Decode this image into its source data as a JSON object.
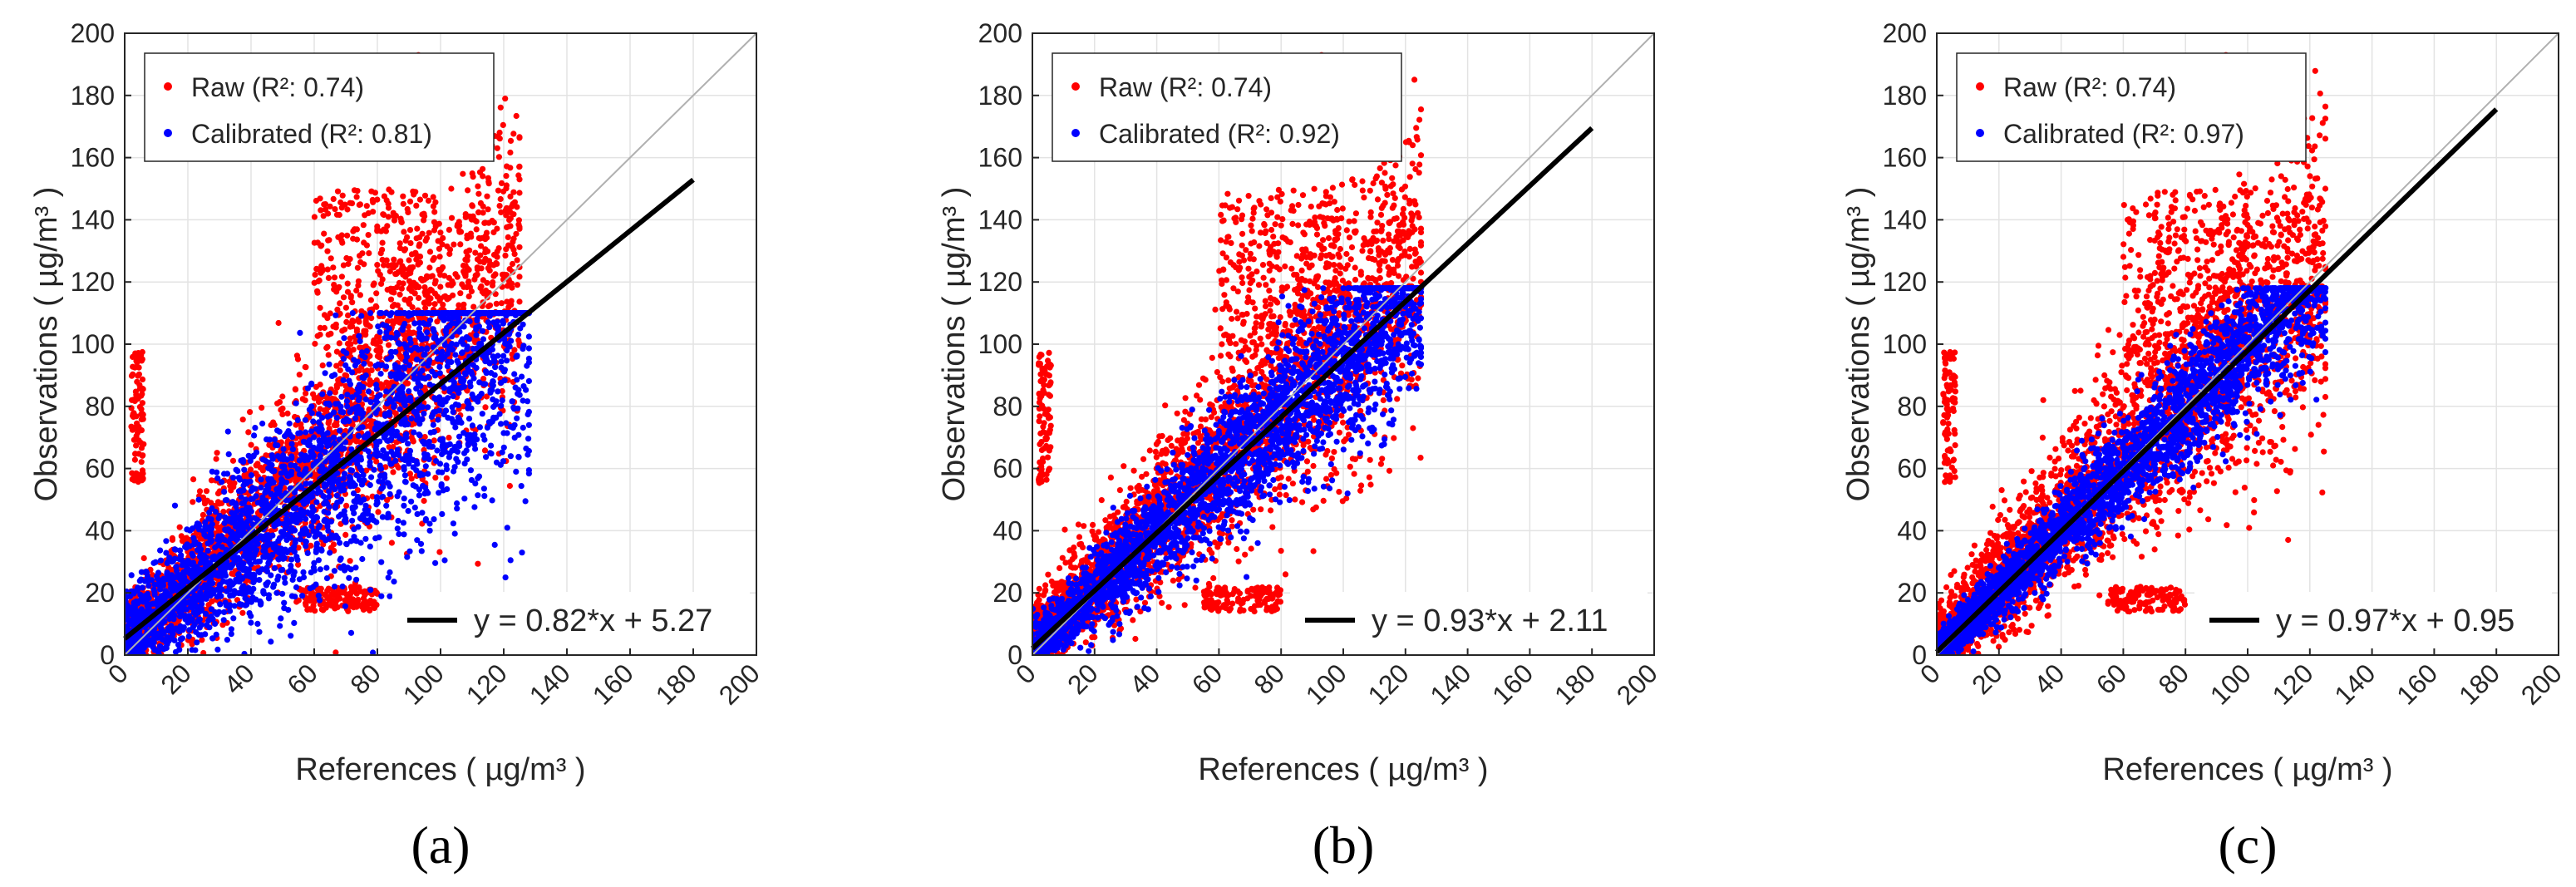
{
  "chart_data": [
    {
      "type": "scatter",
      "panel_label": "(a)",
      "xlabel": "References ( µg/m³ )",
      "ylabel": "Observations ( µg/m³ )",
      "xlim": [
        0,
        200
      ],
      "ylim": [
        0,
        200
      ],
      "xticks": [
        0,
        20,
        40,
        60,
        80,
        100,
        120,
        140,
        160,
        180,
        200
      ],
      "yticks": [
        0,
        20,
        40,
        60,
        80,
        100,
        120,
        140,
        160,
        180,
        200
      ],
      "grid": true,
      "legend_position": "top-left",
      "series": [
        {
          "name": "Raw",
          "r2_label": "Raw (R²: 0.74)",
          "color": "#ff0000",
          "slope": 1.0,
          "intercept": 0,
          "x_max": 125
        },
        {
          "name": "Calibrated",
          "r2_label": "Calibrated (R²: 0.81)",
          "color": "#0000ff",
          "slope": 0.82,
          "intercept": 5.27,
          "x_max": 128
        }
      ],
      "fit_line": {
        "label": "y = 0.82*x + 5.27",
        "slope": 0.82,
        "intercept": 5.27,
        "x_range": [
          0,
          180
        ],
        "color": "#000000"
      },
      "identity_line": {
        "x_range": [
          0,
          200
        ],
        "color": "#b0b0b0"
      }
    },
    {
      "type": "scatter",
      "panel_label": "(b)",
      "xlabel": "References ( µg/m³ )",
      "ylabel": "Observations ( µg/m³ )",
      "xlim": [
        0,
        200
      ],
      "ylim": [
        0,
        200
      ],
      "xticks": [
        0,
        20,
        40,
        60,
        80,
        100,
        120,
        140,
        160,
        180,
        200
      ],
      "yticks": [
        0,
        20,
        40,
        60,
        80,
        100,
        120,
        140,
        160,
        180,
        200
      ],
      "grid": true,
      "legend_position": "top-left",
      "series": [
        {
          "name": "Raw",
          "r2_label": "Raw (R²: 0.74)",
          "color": "#ff0000",
          "slope": 1.0,
          "intercept": 0,
          "x_max": 125
        },
        {
          "name": "Calibrated",
          "r2_label": "Calibrated (R²: 0.92)",
          "color": "#0000ff",
          "slope": 0.93,
          "intercept": 2.11,
          "x_max": 125
        }
      ],
      "fit_line": {
        "label": "y = 0.93*x + 2.11",
        "slope": 0.93,
        "intercept": 2.11,
        "x_range": [
          0,
          180
        ],
        "color": "#000000"
      },
      "identity_line": {
        "x_range": [
          0,
          200
        ],
        "color": "#b0b0b0"
      }
    },
    {
      "type": "scatter",
      "panel_label": "(c)",
      "xlabel": "References ( µg/m³ )",
      "ylabel": "Observations ( µg/m³ )",
      "xlim": [
        0,
        200
      ],
      "ylim": [
        0,
        200
      ],
      "xticks": [
        0,
        20,
        40,
        60,
        80,
        100,
        120,
        140,
        160,
        180,
        200
      ],
      "yticks": [
        0,
        20,
        40,
        60,
        80,
        100,
        120,
        140,
        160,
        180,
        200
      ],
      "grid": true,
      "legend_position": "top-left",
      "series": [
        {
          "name": "Raw",
          "r2_label": "Raw (R²: 0.74)",
          "color": "#ff0000",
          "slope": 1.0,
          "intercept": 0,
          "x_max": 125
        },
        {
          "name": "Calibrated",
          "r2_label": "Calibrated (R²: 0.97)",
          "color": "#0000ff",
          "slope": 0.97,
          "intercept": 0.95,
          "x_max": 125
        }
      ],
      "fit_line": {
        "label": "y = 0.97*x + 0.95",
        "slope": 0.97,
        "intercept": 0.95,
        "x_range": [
          0,
          180
        ],
        "color": "#000000"
      },
      "identity_line": {
        "x_range": [
          0,
          200
        ],
        "color": "#b0b0b0"
      }
    }
  ]
}
